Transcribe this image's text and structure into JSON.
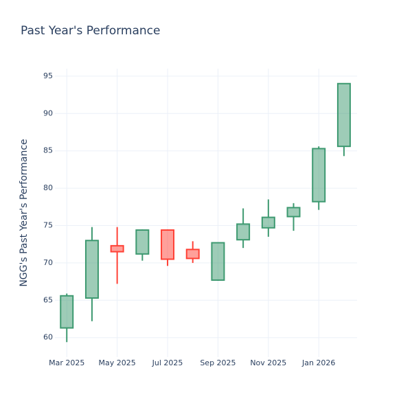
{
  "chart_data": {
    "type": "candlestick",
    "title": "Past Year's Performance",
    "y_label": "NGG's Past Year's Performance",
    "x": [
      "2025-03",
      "2025-04",
      "2025-05",
      "2025-06",
      "2025-07",
      "2025-08",
      "2025-09",
      "2025-10",
      "2025-11",
      "2025-12",
      "2026-01",
      "2026-02"
    ],
    "open": [
      61.3,
      65.3,
      72.3,
      71.2,
      74.4,
      71.8,
      67.7,
      73.1,
      74.7,
      76.2,
      78.2,
      85.6
    ],
    "high": [
      65.9,
      74.8,
      74.8,
      74.5,
      74.5,
      72.9,
      72.7,
      77.3,
      78.5,
      78.0,
      85.6,
      94.0
    ],
    "low": [
      59.4,
      62.2,
      67.2,
      70.3,
      69.6,
      70.0,
      67.6,
      72.0,
      73.5,
      74.3,
      77.1,
      84.3
    ],
    "close": [
      65.6,
      73.0,
      71.5,
      74.4,
      70.5,
      70.6,
      72.7,
      75.2,
      76.1,
      77.4,
      85.3,
      94.0
    ],
    "increasing_color": "#3d9970",
    "decreasing_color": "#ff4136",
    "ylim": [
      57.4,
      96.0
    ],
    "yticks": [
      60,
      65,
      70,
      75,
      80,
      85,
      90,
      95
    ],
    "xticks": [
      {
        "value": "2025-03",
        "label": "Mar 2025"
      },
      {
        "value": "2025-05",
        "label": "May 2025"
      },
      {
        "value": "2025-07",
        "label": "Jul 2025"
      },
      {
        "value": "2025-09",
        "label": "Sep 2025"
      },
      {
        "value": "2025-11",
        "label": "Nov 2025"
      },
      {
        "value": "2026-01",
        "label": "Jan 2026"
      }
    ],
    "grid": true
  }
}
